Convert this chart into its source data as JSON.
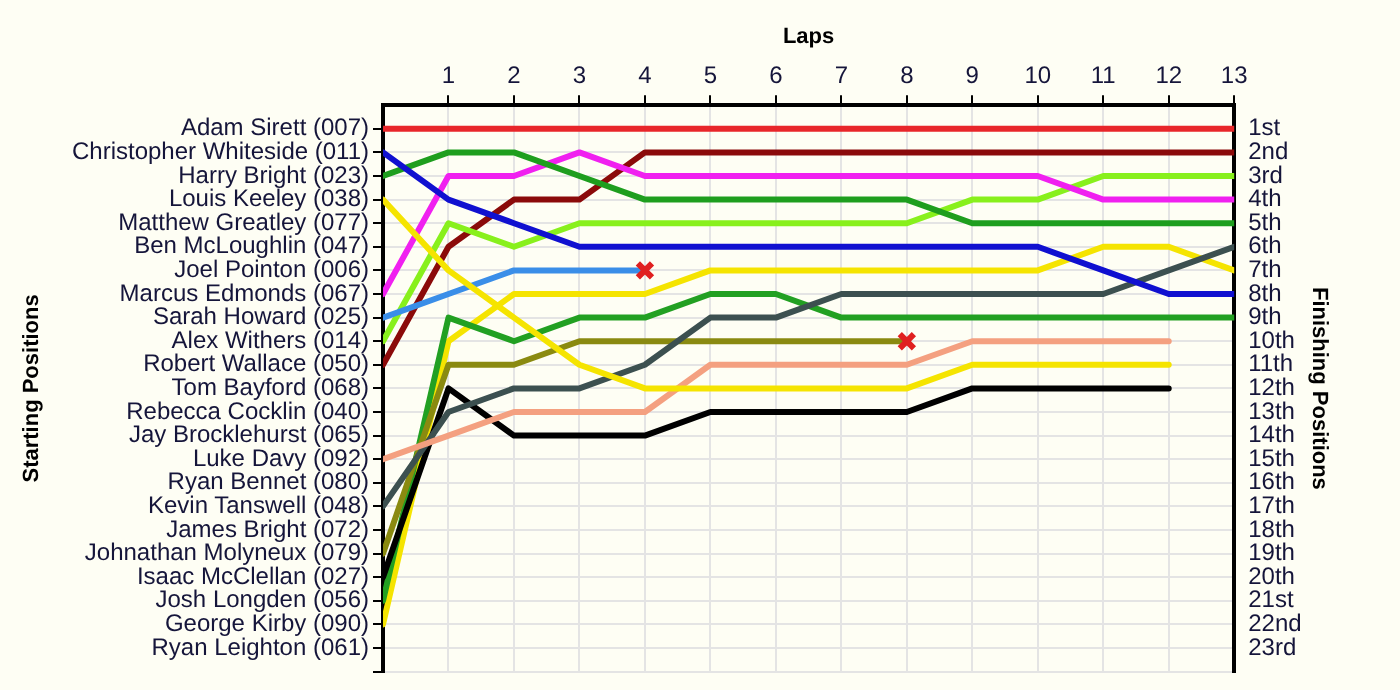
{
  "chart_data": {
    "type": "line",
    "xlabel": "Laps",
    "annotations": [
      "Starting Positions"
    ],
    "y2label": "Finishing Positions",
    "xlim": [
      0,
      13
    ],
    "xticks": [
      1,
      2,
      3,
      4,
      5,
      6,
      7,
      8,
      9,
      10,
      11,
      12,
      13
    ],
    "y_categories": [
      "Adam Sirett (007)",
      "Christopher Whiteside (011)",
      "Harry Bright (023)",
      "Louis Keeley (038)",
      "Matthew Greatley (077)",
      "Ben McLoughlin (047)",
      "Joel Pointon (006)",
      "Marcus Edmonds (067)",
      "Sarah Howard (025)",
      "Alex Withers (014)",
      "Robert Wallace (050)",
      "Tom Bayford (068)",
      "Rebecca Cocklin (040)",
      "Jay Brocklehurst (065)",
      "Luke Davy (092)",
      "Ryan Bennet (080)",
      "Kevin Tanswell (048)",
      "James Bright (072)",
      "Johnathan Molyneux (079)",
      "Isaac McClellan (027)",
      "Josh Longden (056)",
      "George Kirby (090)",
      "Ryan Leighton (061)"
    ],
    "y2lim": [
      24,
      0
    ],
    "y2ticks": [
      {
        "value": 1,
        "label": "1st"
      },
      {
        "value": 2,
        "label": "2nd"
      },
      {
        "value": 3,
        "label": "3rd"
      },
      {
        "value": 4,
        "label": "4th"
      },
      {
        "value": 5,
        "label": "5th"
      },
      {
        "value": 6,
        "label": "6th"
      },
      {
        "value": 7,
        "label": "7th"
      },
      {
        "value": 8,
        "label": "8th"
      },
      {
        "value": 9,
        "label": "9th"
      },
      {
        "value": 10,
        "label": "10th"
      },
      {
        "value": 11,
        "label": "11th"
      },
      {
        "value": 12,
        "label": "12th"
      },
      {
        "value": 13,
        "label": "13th"
      },
      {
        "value": 14,
        "label": "14th"
      },
      {
        "value": 15,
        "label": "15th"
      },
      {
        "value": 16,
        "label": "16th"
      },
      {
        "value": 17,
        "label": "17th"
      },
      {
        "value": 18,
        "label": "18th"
      },
      {
        "value": 19,
        "label": "19th"
      },
      {
        "value": 20,
        "label": "20th"
      },
      {
        "value": 21,
        "label": "21st"
      },
      {
        "value": 22,
        "label": "22nd"
      },
      {
        "value": 23,
        "label": "23rd"
      },
      {
        "value": 24,
        "label": null
      }
    ],
    "grid": true,
    "legend": false,
    "marker": "none",
    "line_style": "solid",
    "series": [
      {
        "axis": "y2",
        "color": "#e8262a",
        "x": [
          0,
          1,
          2,
          3,
          4,
          5,
          6,
          7,
          8,
          9,
          10,
          11,
          12,
          13
        ],
        "values": [
          1,
          1,
          1,
          1,
          1,
          1,
          1,
          1,
          1,
          1,
          1,
          1,
          1,
          1
        ]
      },
      {
        "axis": "y2",
        "color": "#1010d0",
        "x": [
          0,
          1,
          2,
          3,
          4,
          5,
          6,
          7,
          8,
          9,
          10,
          11,
          12,
          13
        ],
        "values": [
          2,
          4,
          5,
          6,
          6,
          6,
          6,
          6,
          6,
          6,
          6,
          7,
          8,
          8
        ]
      },
      {
        "axis": "y2",
        "color": "#1e9e1e",
        "x": [
          0,
          1,
          2,
          3,
          4,
          5,
          6,
          7,
          8,
          9,
          10,
          11,
          12,
          13
        ],
        "values": [
          3,
          2,
          2,
          3,
          4,
          4,
          4,
          4,
          4,
          5,
          5,
          5,
          5,
          5
        ]
      },
      {
        "axis": "y2",
        "color": "#f5e400",
        "x": [
          0,
          1,
          2,
          3,
          4,
          5,
          6,
          7,
          8,
          9,
          10,
          11,
          12
        ],
        "values": [
          4,
          7,
          9,
          11,
          12,
          12,
          12,
          12,
          12,
          11,
          11,
          11,
          11
        ]
      },
      {
        "axis": "y2",
        "color": "#f020f0",
        "x": [
          0,
          1,
          2,
          3,
          4,
          5,
          6,
          7,
          8,
          9,
          10,
          11,
          12,
          13
        ],
        "values": [
          8,
          3,
          3,
          2,
          3,
          3,
          3,
          3,
          3,
          3,
          3,
          4,
          4,
          4
        ]
      },
      {
        "axis": "y2",
        "color": "#3a8ee8",
        "x": [
          0,
          1,
          2,
          3,
          4
        ],
        "values": [
          9,
          8,
          7,
          7,
          7
        ]
      },
      {
        "axis": "y2",
        "color": "#88f01c",
        "x": [
          0,
          1,
          2,
          3,
          4,
          5,
          6,
          7,
          8,
          9,
          10,
          11,
          12,
          13
        ],
        "values": [
          10,
          5,
          6,
          5,
          5,
          5,
          5,
          5,
          5,
          4,
          4,
          3,
          3,
          3
        ]
      },
      {
        "axis": "y2",
        "color": "#8b0a0a",
        "x": [
          0,
          1,
          2,
          3,
          4,
          5,
          6,
          7,
          8,
          9,
          10,
          11,
          12,
          13
        ],
        "values": [
          11,
          6,
          4,
          4,
          2,
          2,
          2,
          2,
          2,
          2,
          2,
          2,
          2,
          2
        ]
      },
      {
        "axis": "y2",
        "color": "#f4a080",
        "x": [
          0,
          1,
          2,
          3,
          4,
          5,
          6,
          7,
          8,
          9,
          10,
          11,
          12
        ],
        "values": [
          15,
          14,
          13,
          13,
          13,
          11,
          11,
          11,
          11,
          10,
          10,
          10,
          10
        ]
      },
      {
        "axis": "y2",
        "color": "#3c5050",
        "x": [
          0,
          1,
          2,
          3,
          4,
          5,
          6,
          7,
          8,
          9,
          10,
          11,
          12,
          13
        ],
        "values": [
          17,
          13,
          12,
          12,
          11,
          9,
          9,
          8,
          8,
          8,
          8,
          8,
          7,
          6
        ]
      },
      {
        "axis": "y2",
        "color": "#8a8a10",
        "x": [
          0,
          1,
          2,
          3,
          4,
          5,
          6,
          7,
          8
        ],
        "values": [
          19,
          11,
          11,
          10,
          10,
          10,
          10,
          10,
          10
        ]
      },
      {
        "axis": "y2",
        "color": "#000000",
        "x": [
          0,
          1,
          2,
          3,
          4,
          5,
          6,
          7,
          8,
          9,
          10,
          11,
          12
        ],
        "values": [
          20,
          12,
          14,
          14,
          14,
          13,
          13,
          13,
          13,
          12,
          12,
          12,
          12
        ]
      },
      {
        "axis": "y2",
        "color": "#22a022",
        "x": [
          0,
          1,
          2,
          3,
          4,
          5,
          6,
          7,
          8,
          9,
          10,
          11,
          12,
          13
        ],
        "values": [
          21,
          9,
          10,
          9,
          9,
          8,
          8,
          9,
          9,
          9,
          9,
          9,
          9,
          9
        ]
      },
      {
        "axis": "y2",
        "color": "#f5e400",
        "x": [
          0,
          1,
          2,
          3,
          4,
          5,
          6,
          7,
          8,
          9,
          10,
          11,
          12,
          13
        ],
        "values": [
          22,
          10,
          8,
          8,
          8,
          7,
          7,
          7,
          7,
          7,
          7,
          6,
          6,
          7
        ]
      },
      {
        "axis": "y2",
        "type": "scatter",
        "marker": "cross",
        "color": "#e02020",
        "x": [
          4,
          8
        ],
        "values": [
          7,
          10
        ]
      }
    ]
  }
}
